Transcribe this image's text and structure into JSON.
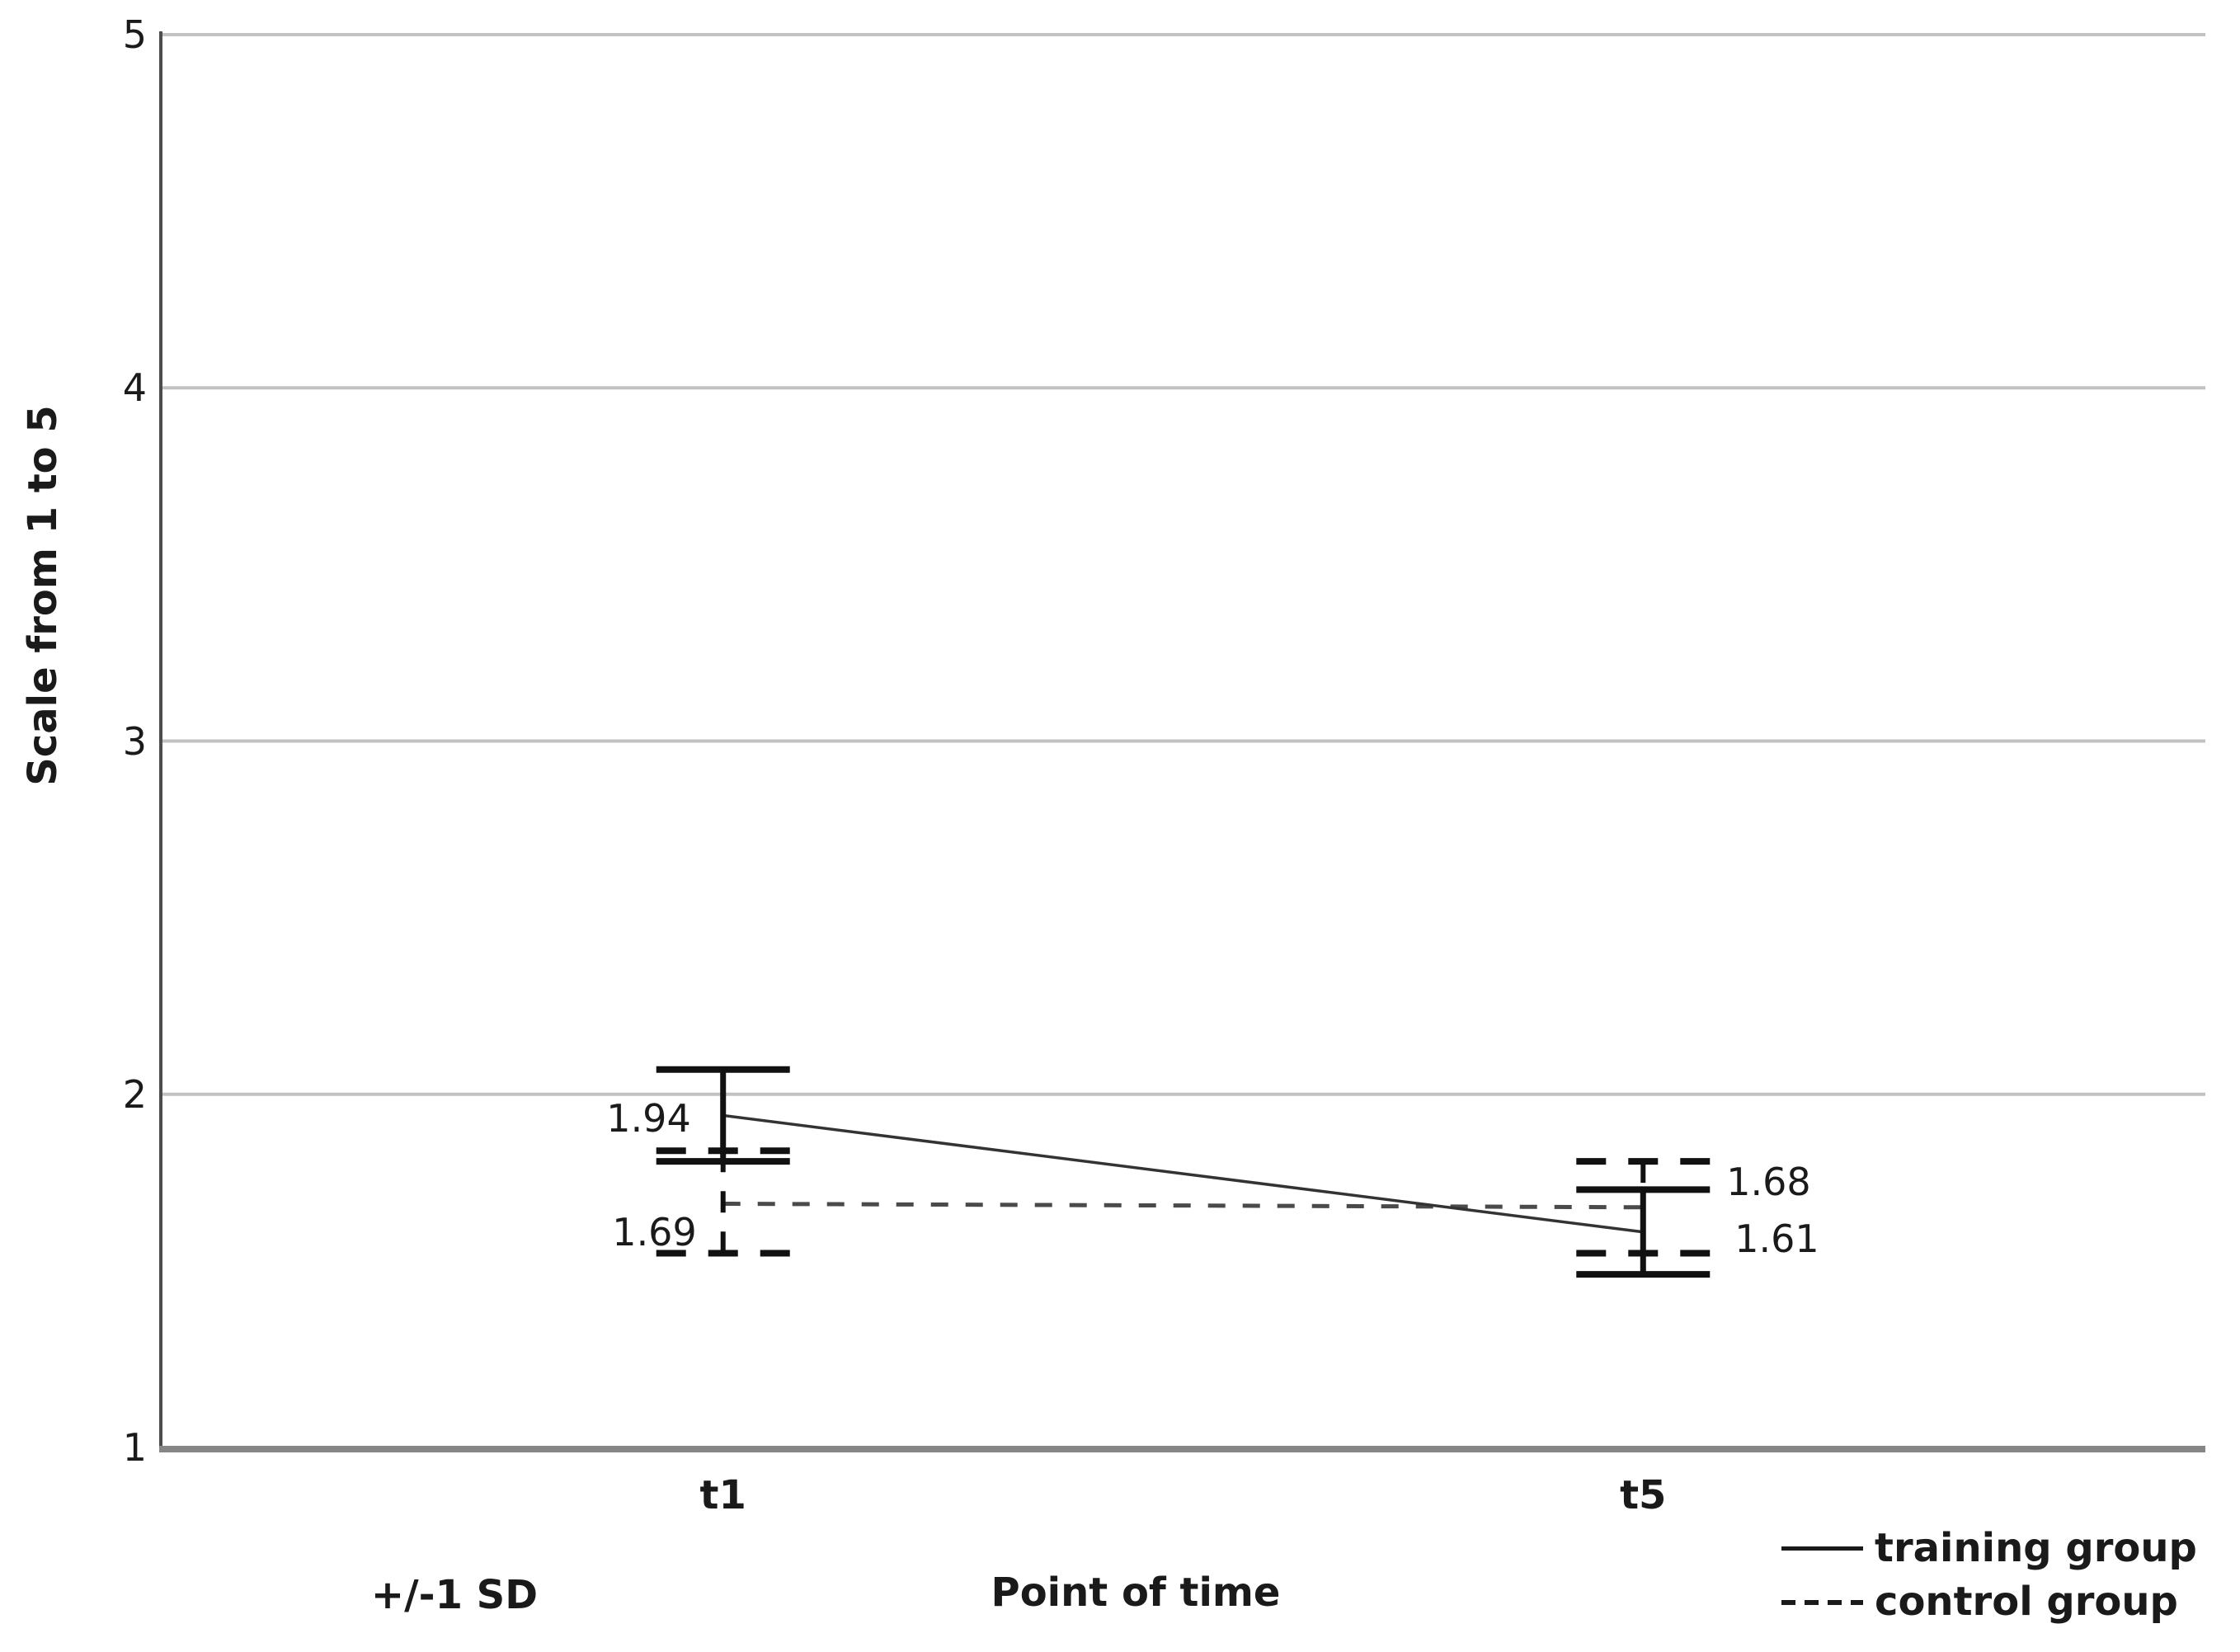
{
  "chart_data": {
    "type": "line",
    "title": "",
    "xlabel": "Point of time",
    "ylabel": "Scale from 1 to 5",
    "error_note": "+/-1 SD",
    "categories": [
      "t1",
      "t5"
    ],
    "yticks": [
      "1",
      "2",
      "3",
      "4",
      "5"
    ],
    "ylim": [
      1,
      5
    ],
    "grid": "horizontal",
    "legend_position": "bottom-right",
    "series": [
      {
        "name": "training group",
        "style": "solid",
        "values": [
          1.94,
          1.61
        ],
        "labels": [
          "1.94",
          "1.61"
        ],
        "error_upper": [
          2.07,
          1.73
        ],
        "error_lower": [
          1.81,
          1.49
        ]
      },
      {
        "name": "control group",
        "style": "dashed",
        "values": [
          1.69,
          1.68
        ],
        "labels": [
          "1.69",
          "1.68"
        ],
        "error_upper": [
          1.84,
          1.81
        ],
        "error_lower": [
          1.55,
          1.55
        ]
      }
    ]
  },
  "colors": {
    "text": "#1a1a1a",
    "gridline": "#c2c2c2",
    "y_axis": "#4d4d4d",
    "x_axis": "#868686",
    "error_bar": "#111111",
    "solid_line": "#333333",
    "dashed_line": "#4a4a4a"
  }
}
